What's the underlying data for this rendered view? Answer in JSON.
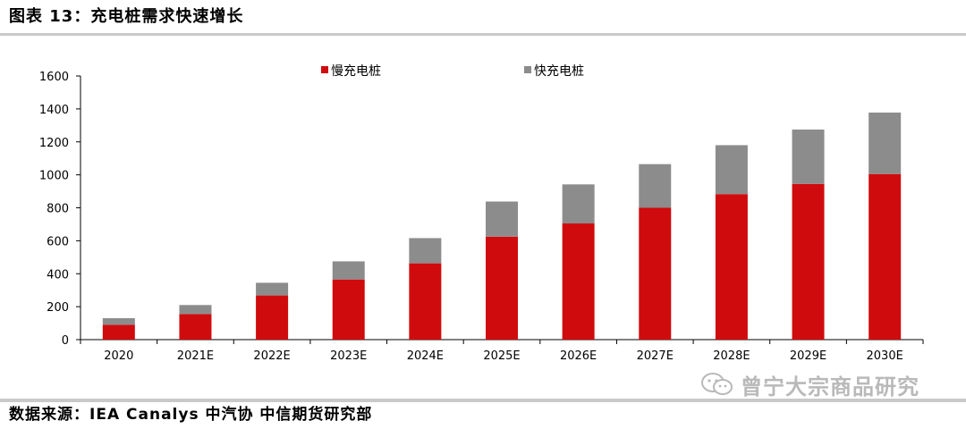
{
  "title": "图表 13：充电桩需求快速增长",
  "source": "数据来源：IEA Canalys 中汽协 中信期货研究部",
  "watermark": "曾宁大宗商品研究",
  "colors": {
    "slow": "#d00b0d",
    "fast": "#8c8c8c",
    "rule": "#c9c9c9"
  },
  "chart_data": {
    "type": "bar",
    "stacked": true,
    "categories": [
      "2020",
      "2021E",
      "2022E",
      "2023E",
      "2024E",
      "2025E",
      "2026E",
      "2027E",
      "2028E",
      "2029E",
      "2030E"
    ],
    "series": [
      {
        "name": "慢充电桩",
        "color": "#d00b0d",
        "values": [
          90,
          155,
          268,
          365,
          463,
          625,
          705,
          800,
          883,
          945,
          1005
        ]
      },
      {
        "name": "快充电桩",
        "color": "#8c8c8c",
        "values": [
          40,
          55,
          77,
          110,
          153,
          213,
          237,
          265,
          297,
          330,
          373
        ]
      }
    ],
    "ylim": [
      0,
      1600
    ],
    "yticks": [
      0,
      200,
      400,
      600,
      800,
      1000,
      1200,
      1400,
      1600
    ],
    "xlabel": "",
    "ylabel": "",
    "legend": "top-center",
    "grid": false
  }
}
